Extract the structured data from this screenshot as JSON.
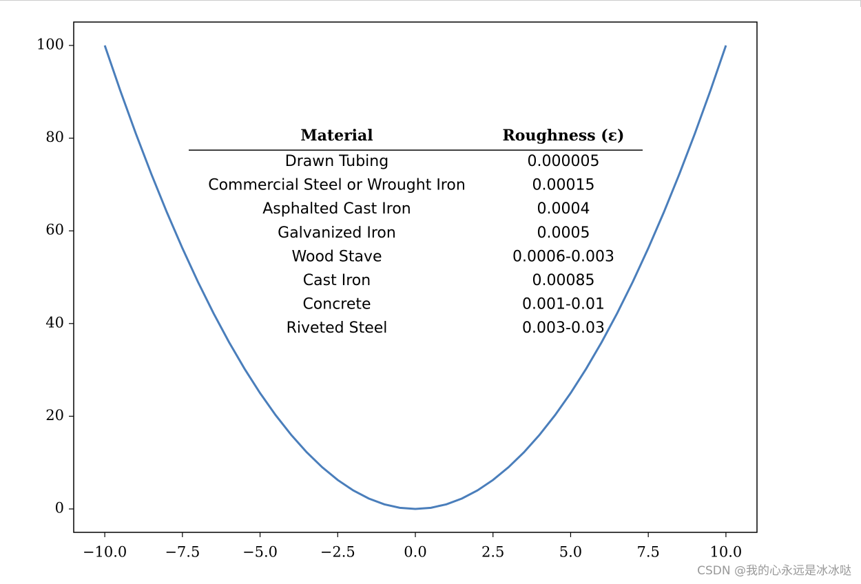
{
  "chart_data": {
    "type": "line",
    "color": "#4a7ebb",
    "x": [
      -10,
      -9.5,
      -9,
      -8.5,
      -8,
      -7.5,
      -7,
      -6.5,
      -6,
      -5.5,
      -5,
      -4.5,
      -4,
      -3.5,
      -3,
      -2.5,
      -2,
      -1.5,
      -1,
      -0.5,
      0,
      0.5,
      1,
      1.5,
      2,
      2.5,
      3,
      3.5,
      4,
      4.5,
      5,
      5.5,
      6,
      6.5,
      7,
      7.5,
      8,
      8.5,
      9,
      9.5,
      10
    ],
    "values": [
      100,
      90.25,
      81,
      72.25,
      64,
      56.25,
      49,
      42.25,
      36,
      30.25,
      25,
      20.25,
      16,
      12.25,
      9,
      6.25,
      4,
      2.25,
      1,
      0.25,
      0,
      0.25,
      1,
      2.25,
      4,
      6.25,
      9,
      12.25,
      16,
      20.25,
      25,
      30.25,
      36,
      42.25,
      49,
      56.25,
      64,
      72.25,
      81,
      90.25,
      100
    ],
    "xlim": [
      -11,
      11
    ],
    "ylim": [
      -5.05,
      105.05
    ],
    "xticks": [
      {
        "value": -10,
        "label": "−10.0"
      },
      {
        "value": -7.5,
        "label": "−7.5"
      },
      {
        "value": -5,
        "label": "−5.0"
      },
      {
        "value": -2.5,
        "label": "−2.5"
      },
      {
        "value": 0,
        "label": "0.0"
      },
      2.5,
      {
        "value": 5,
        "label": "5.0"
      },
      7.5,
      {
        "value": 10,
        "label": "10.0"
      }
    ],
    "yticks": [
      0,
      20,
      40,
      60,
      80,
      100
    ],
    "table": {
      "columns": [
        "Material",
        "Roughness (ε)"
      ],
      "rows": [
        [
          "Drawn Tubing",
          "0.000005"
        ],
        [
          "Commercial Steel or Wrought Iron",
          "0.00015"
        ],
        [
          "Asphalted Cast Iron",
          "0.0004"
        ],
        [
          "Galvanized Iron",
          "0.0005"
        ],
        [
          "Wood Stave",
          "0.0006-0.003"
        ],
        [
          "Cast Iron",
          "0.00085"
        ],
        [
          "Concrete",
          "0.001-0.01"
        ],
        [
          "Riveted Steel",
          "0.003-0.03"
        ]
      ]
    }
  },
  "watermark": "CSDN @我的心永远是冰冰哒"
}
